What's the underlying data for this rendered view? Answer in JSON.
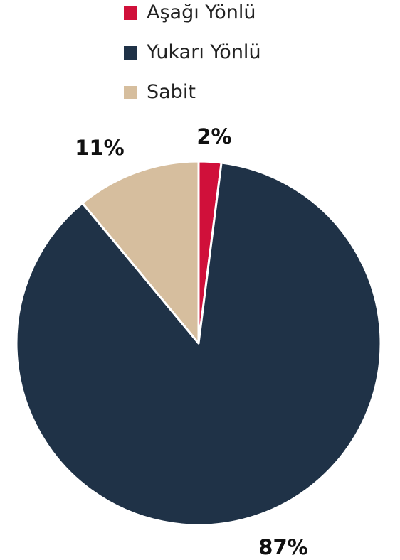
{
  "chart_data": {
    "type": "pie",
    "title": "",
    "slices": [
      {
        "label": "Aşağı Yönlü",
        "value": 2,
        "value_label": "2%",
        "color": "#d0103a"
      },
      {
        "label": "Yukarı Yönlü",
        "value": 87,
        "value_label": "87%",
        "color": "#1f3247"
      },
      {
        "label": "Sabit",
        "value": 11,
        "value_label": "11%",
        "color": "#d6be9e"
      }
    ],
    "legend_position": "top",
    "start_angle_deg": 0,
    "direction": "clockwise"
  }
}
